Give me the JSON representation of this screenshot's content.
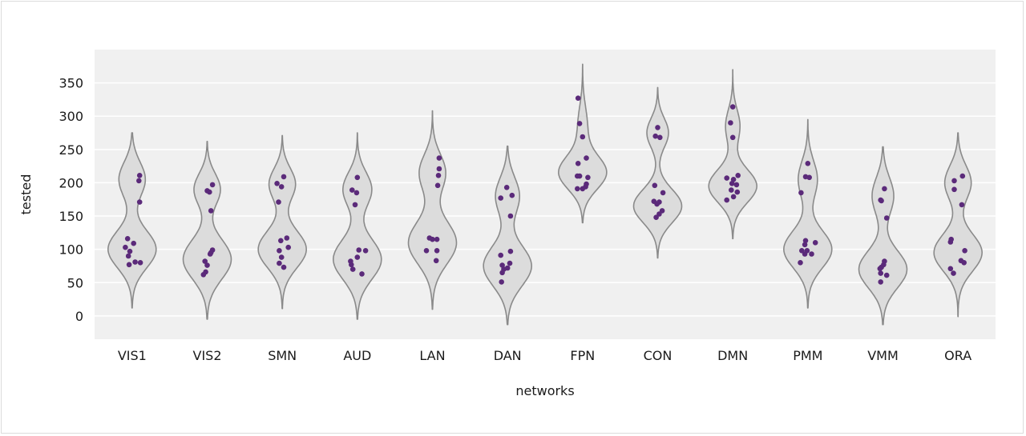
{
  "chart_data": {
    "type": "violin",
    "xlabel": "networks",
    "ylabel": "tested",
    "ylim": [
      -35,
      400
    ],
    "yticks": [
      0,
      50,
      100,
      150,
      200,
      250,
      300,
      350
    ],
    "grid": true,
    "colors": {
      "background": "#f0f0f0",
      "grid": "#ffffff",
      "violin_fill": "#dcdcdc",
      "violin_edge": "#8a8a8a",
      "point": "#5b2a7a"
    },
    "categories": [
      "VIS1",
      "VIS2",
      "SMN",
      "AUD",
      "LAN",
      "DAN",
      "FPN",
      "CON",
      "DMN",
      "PMM",
      "VMM",
      "ORA"
    ],
    "violins": [
      {
        "min": 12,
        "max": 275,
        "modes": [
          [
            100,
            1.0,
            28
          ],
          [
            205,
            0.55,
            26
          ]
        ]
      },
      {
        "min": -5,
        "max": 262,
        "modes": [
          [
            85,
            1.0,
            30
          ],
          [
            190,
            0.55,
            24
          ]
        ]
      },
      {
        "min": 11,
        "max": 271,
        "modes": [
          [
            100,
            1.0,
            28
          ],
          [
            198,
            0.55,
            24
          ]
        ]
      },
      {
        "min": -5,
        "max": 275,
        "modes": [
          [
            85,
            1.0,
            30
          ],
          [
            190,
            0.6,
            26
          ]
        ]
      },
      {
        "min": 10,
        "max": 308,
        "modes": [
          [
            110,
            1.0,
            32
          ],
          [
            215,
            0.55,
            28
          ]
        ]
      },
      {
        "min": -13,
        "max": 255,
        "modes": [
          [
            75,
            1.0,
            30
          ],
          [
            180,
            0.5,
            28
          ]
        ]
      },
      {
        "min": 140,
        "max": 378,
        "modes": [
          [
            215,
            1.0,
            25
          ],
          [
            285,
            0.2,
            30
          ]
        ]
      },
      {
        "min": 87,
        "max": 343,
        "modes": [
          [
            165,
            1.0,
            25
          ],
          [
            275,
            0.45,
            22
          ]
        ]
      },
      {
        "min": 116,
        "max": 370,
        "modes": [
          [
            195,
            1.0,
            25
          ],
          [
            285,
            0.3,
            25
          ]
        ]
      },
      {
        "min": 12,
        "max": 295,
        "modes": [
          [
            100,
            1.0,
            28
          ],
          [
            205,
            0.4,
            28
          ]
        ]
      },
      {
        "min": -13,
        "max": 254,
        "modes": [
          [
            70,
            1.0,
            28
          ],
          [
            180,
            0.45,
            28
          ]
        ]
      },
      {
        "min": -1,
        "max": 275,
        "modes": [
          [
            95,
            1.0,
            28
          ],
          [
            200,
            0.55,
            26
          ]
        ]
      }
    ],
    "points": [
      [
        [
          -0.06,
          116
        ],
        [
          0.02,
          109
        ],
        [
          -0.09,
          103
        ],
        [
          -0.03,
          97
        ],
        [
          -0.05,
          90
        ],
        [
          0.04,
          81
        ],
        [
          0.11,
          80
        ],
        [
          -0.04,
          77
        ],
        [
          0.1,
          211
        ],
        [
          0.09,
          203
        ],
        [
          0.1,
          171
        ]
      ],
      [
        [
          0.0,
          188
        ],
        [
          0.07,
          197
        ],
        [
          0.05,
          158
        ],
        [
          0.07,
          99
        ],
        [
          0.04,
          93
        ],
        [
          0.05,
          95
        ],
        [
          -0.03,
          82
        ],
        [
          0.0,
          76
        ],
        [
          -0.02,
          66
        ],
        [
          -0.05,
          62
        ],
        [
          0.03,
          186
        ]
      ],
      [
        [
          -0.07,
          199
        ],
        [
          0.02,
          209
        ],
        [
          -0.01,
          194
        ],
        [
          -0.05,
          171
        ],
        [
          0.06,
          117
        ],
        [
          -0.02,
          113
        ],
        [
          0.08,
          103
        ],
        [
          -0.04,
          98
        ],
        [
          -0.01,
          88
        ],
        [
          -0.04,
          79
        ],
        [
          0.02,
          73
        ]
      ],
      [
        [
          -0.07,
          189
        ],
        [
          0.0,
          208
        ],
        [
          -0.01,
          185
        ],
        [
          -0.03,
          167
        ],
        [
          0.02,
          99
        ],
        [
          0.11,
          98
        ],
        [
          0.0,
          88
        ],
        [
          -0.09,
          82
        ],
        [
          -0.08,
          77
        ],
        [
          -0.06,
          70
        ],
        [
          0.06,
          63
        ]
      ],
      [
        [
          0.09,
          237
        ],
        [
          0.09,
          221
        ],
        [
          0.08,
          211
        ],
        [
          0.07,
          196
        ],
        [
          -0.04,
          117
        ],
        [
          0.0,
          115
        ],
        [
          0.06,
          115
        ],
        [
          -0.08,
          98
        ],
        [
          0.06,
          98
        ],
        [
          0.05,
          83
        ]
      ],
      [
        [
          -0.01,
          193
        ],
        [
          -0.09,
          177
        ],
        [
          0.06,
          181
        ],
        [
          0.04,
          150
        ],
        [
          -0.09,
          91
        ],
        [
          0.04,
          97
        ],
        [
          0.03,
          79
        ],
        [
          -0.07,
          76
        ],
        [
          -0.05,
          70
        ],
        [
          0.0,
          72
        ],
        [
          -0.07,
          65
        ],
        [
          -0.08,
          51
        ]
      ],
      [
        [
          -0.06,
          327
        ],
        [
          -0.04,
          289
        ],
        [
          0.0,
          269
        ],
        [
          0.05,
          237
        ],
        [
          -0.06,
          229
        ],
        [
          -0.07,
          210
        ],
        [
          -0.04,
          210
        ],
        [
          0.07,
          208
        ],
        [
          0.05,
          198
        ],
        [
          -0.07,
          191
        ],
        [
          0.0,
          191
        ],
        [
          0.04,
          194
        ]
      ],
      [
        [
          0.0,
          283
        ],
        [
          -0.03,
          270
        ],
        [
          0.03,
          268
        ],
        [
          -0.04,
          196
        ],
        [
          0.07,
          185
        ],
        [
          0.02,
          171
        ],
        [
          -0.05,
          172
        ],
        [
          -0.01,
          168
        ],
        [
          0.06,
          158
        ],
        [
          0.02,
          153
        ],
        [
          -0.02,
          148
        ]
      ],
      [
        [
          0.0,
          314
        ],
        [
          -0.03,
          290
        ],
        [
          0.0,
          268
        ],
        [
          0.07,
          211
        ],
        [
          -0.08,
          207
        ],
        [
          0.01,
          205
        ],
        [
          -0.01,
          199
        ],
        [
          0.05,
          197
        ],
        [
          -0.02,
          189
        ],
        [
          0.06,
          186
        ],
        [
          0.01,
          179
        ],
        [
          -0.08,
          174
        ]
      ],
      [
        [
          0.0,
          229
        ],
        [
          -0.03,
          209
        ],
        [
          0.02,
          208
        ],
        [
          -0.09,
          185
        ],
        [
          -0.03,
          113
        ],
        [
          -0.04,
          107
        ],
        [
          0.1,
          110
        ],
        [
          -0.01,
          98
        ],
        [
          -0.08,
          98
        ],
        [
          0.05,
          93
        ],
        [
          -0.04,
          93
        ],
        [
          -0.1,
          80
        ]
      ],
      [
        [
          0.02,
          191
        ],
        [
          -0.03,
          174
        ],
        [
          -0.02,
          173
        ],
        [
          0.05,
          147
        ],
        [
          0.02,
          82
        ],
        [
          0.01,
          77
        ],
        [
          -0.02,
          73
        ],
        [
          -0.04,
          71
        ],
        [
          -0.03,
          64
        ],
        [
          0.05,
          61
        ],
        [
          -0.03,
          51
        ]
      ],
      [
        [
          0.06,
          210
        ],
        [
          -0.05,
          203
        ],
        [
          -0.05,
          190
        ],
        [
          0.05,
          167
        ],
        [
          -0.09,
          115
        ],
        [
          -0.1,
          111
        ],
        [
          0.09,
          98
        ],
        [
          0.04,
          83
        ],
        [
          0.08,
          80
        ],
        [
          -0.1,
          71
        ],
        [
          -0.06,
          64
        ]
      ]
    ]
  }
}
